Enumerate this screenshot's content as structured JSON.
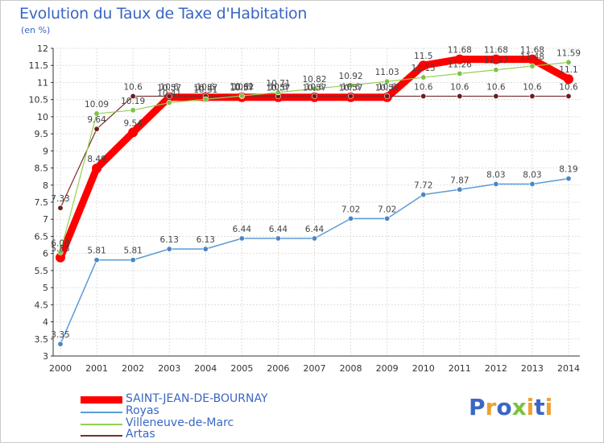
{
  "header": {
    "title": "Evolution du Taux de Taxe d'Habitation",
    "subtitle": "(en %)"
  },
  "logo": {
    "letters": [
      "P",
      "r",
      "o",
      "x",
      "i",
      "t",
      "i"
    ]
  },
  "colors": {
    "saint_jean": "#ff0000",
    "royas": "#5b9bd5",
    "villeneuve": "#92d050",
    "artas": "#7b2c2c",
    "text": "#3a66c4",
    "grid": "#dddddd",
    "logo": [
      "#3a66c4",
      "#f0a030",
      "#3a66c4",
      "#7cc242",
      "#f0a030",
      "#3a66c4",
      "#f0a030"
    ]
  },
  "chart_data": {
    "type": "line",
    "title": "Evolution du Taux de Taxe d'Habitation",
    "ylabel": "(en %)",
    "xlabel": "",
    "ylim": [
      3,
      12
    ],
    "yticks": [
      "3",
      "3.5",
      "4",
      "4.5",
      "5",
      "5.5",
      "6",
      "6.5",
      "7",
      "7.5",
      "8",
      "8.5",
      "9",
      "9.5",
      "10",
      "10.5",
      "11",
      "11.5",
      "12"
    ],
    "categories": [
      "2000",
      "2001",
      "2002",
      "2003",
      "2004",
      "2005",
      "2006",
      "2007",
      "2008",
      "2009",
      "2010",
      "2011",
      "2012",
      "2013",
      "2014"
    ],
    "grid": true,
    "legend_position": "bottom-left",
    "series": [
      {
        "name": "SAINT-JEAN-DE-BOURNAY",
        "key": "saint_jean",
        "values": [
          5.88,
          8.49,
          9.54,
          10.57,
          10.57,
          10.57,
          10.57,
          10.57,
          10.57,
          10.57,
          11.5,
          11.68,
          11.68,
          11.68,
          11.1
        ],
        "labels": [
          "5.88",
          "8.49",
          "9.54",
          "10.57",
          "10.57",
          "10.57",
          "10.57",
          "10.57",
          "10.57",
          "10.57",
          "11.5",
          "11.68",
          "11.68",
          "11.68",
          "11.1"
        ]
      },
      {
        "name": "Royas",
        "key": "royas",
        "values": [
          3.35,
          5.81,
          5.81,
          6.13,
          6.13,
          6.44,
          6.44,
          6.44,
          7.02,
          7.02,
          7.72,
          7.87,
          8.03,
          8.03,
          8.19
        ],
        "labels": [
          "3.35",
          "5.81",
          "5.81",
          "6.13",
          "6.13",
          "6.44",
          "6.44",
          "6.44",
          "7.02",
          "7.02",
          "7.72",
          "7.87",
          "8.03",
          "8.03",
          "8.19"
        ]
      },
      {
        "name": "Villeneuve-de-Marc",
        "key": "villeneuve",
        "values": [
          6.03,
          10.09,
          10.19,
          10.41,
          10.51,
          10.61,
          10.71,
          10.82,
          10.92,
          11.03,
          11.15,
          11.26,
          11.37,
          11.48,
          11.59
        ],
        "labels": [
          "6.03",
          "10.09",
          "10.19",
          "10.41",
          "10.51",
          "10.61",
          "10.71",
          "10.82",
          "10.92",
          "11.03",
          "11.15",
          "11.26",
          "11.37",
          "11.48",
          "11.59"
        ]
      },
      {
        "name": "Artas",
        "key": "artas",
        "values": [
          7.33,
          9.64,
          10.6,
          10.6,
          10.6,
          10.6,
          10.6,
          10.6,
          10.6,
          10.6,
          10.6,
          10.6,
          10.6,
          10.6,
          10.6
        ],
        "labels": [
          "7.33",
          "9.64",
          "10.6",
          "10.6",
          "10.6",
          "10.6",
          "10.6",
          "10.6",
          "10.6",
          "10.6",
          "10.6",
          "10.6",
          "10.6",
          "10.6",
          "10.6"
        ]
      }
    ]
  }
}
